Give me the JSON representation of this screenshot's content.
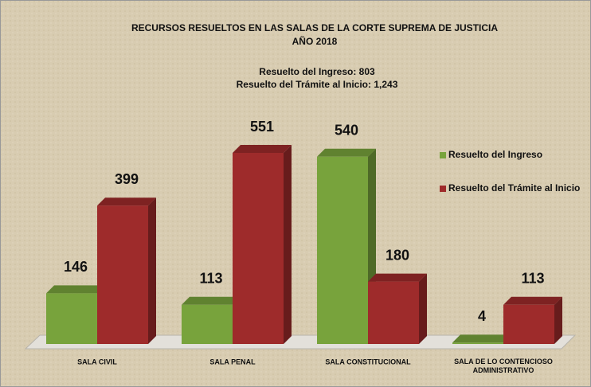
{
  "chart_data": {
    "type": "bar",
    "title": [
      "RECURSOS RESUELTOS EN LAS SALAS DE LA CORTE SUPREMA DE JUSTICIA",
      "AÑO 2018"
    ],
    "subtitle": [
      "Resuelto del Ingreso: 803",
      "Resuelto del Trámite al Inicio: 1,243"
    ],
    "categories": [
      "SALA CIVIL",
      "SALA PENAL",
      "SALA CONSTITUCIONAL",
      "SALA DE LO CONTENCIOSO ADMINISTRATIVO"
    ],
    "series": [
      {
        "name": "Resuelto del Ingreso",
        "color": "#78a33c",
        "values": [
          146,
          113,
          540,
          4
        ]
      },
      {
        "name": "Resuelto del Trámite al Inicio",
        "color": "#9e2b2b",
        "values": [
          399,
          551,
          180,
          113
        ]
      }
    ],
    "legend": "right"
  }
}
